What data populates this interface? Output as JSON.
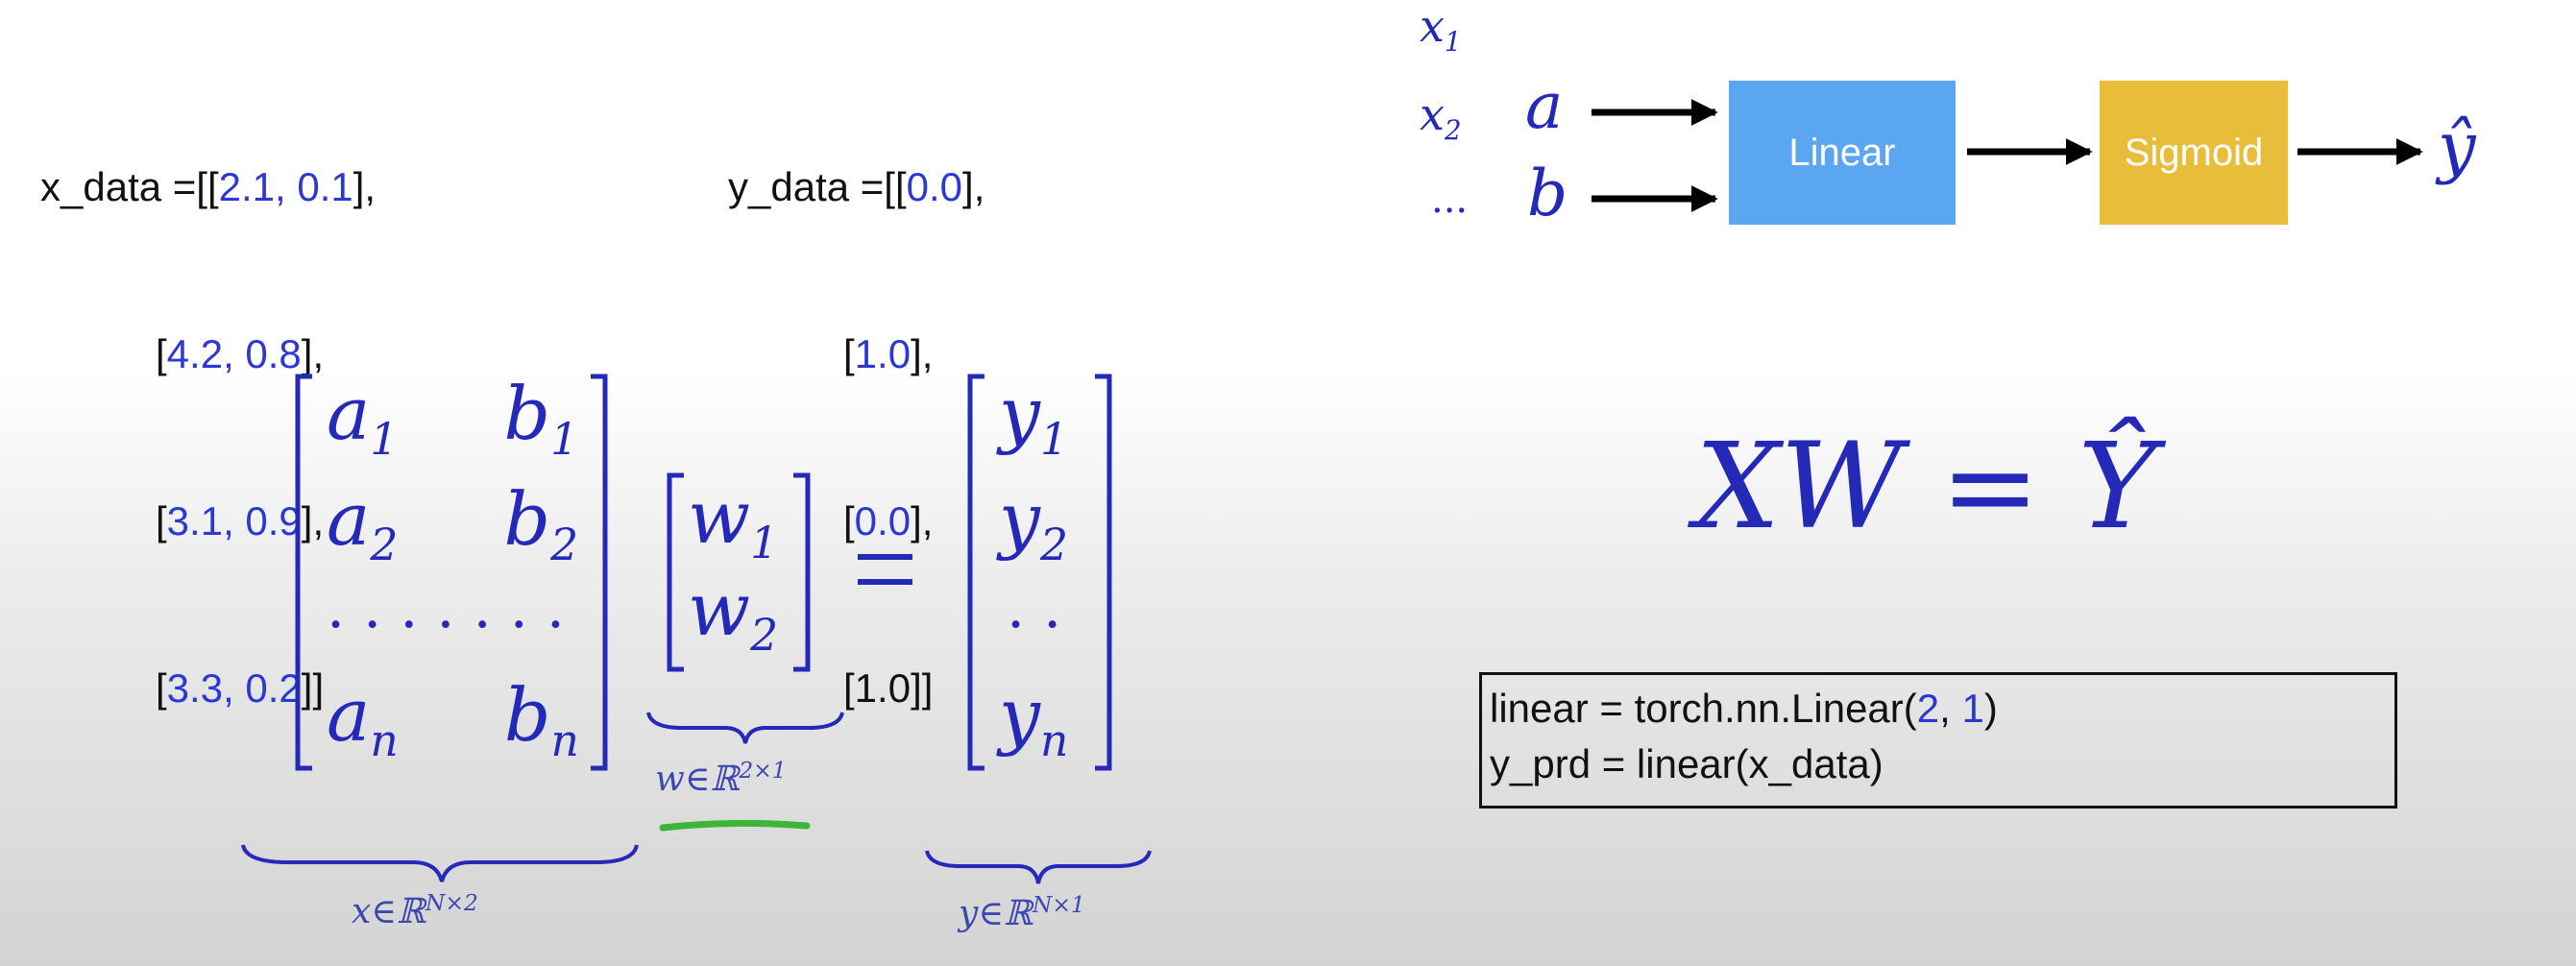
{
  "x_data": {
    "prefix": "x_data =[[",
    "rows": [
      {
        "a": "2.1",
        "b": "0.1",
        "end": "],"
      },
      {
        "a": "4.2",
        "b": "0.8",
        "end": "],"
      },
      {
        "a": "3.1",
        "b": "0.9",
        "end": "],"
      },
      {
        "a": "3.3",
        "b": "0.2",
        "end": "]]"
      }
    ],
    "sep": ", ",
    "open": "["
  },
  "y_data": {
    "prefix": "y_data =[[",
    "rows": [
      {
        "v": "0.0",
        "end": "],"
      },
      {
        "v": "1.0",
        "end": "],"
      },
      {
        "v": "0.0",
        "end": "],"
      },
      {
        "v": "1.0",
        "end": "]]"
      }
    ],
    "open": "["
  },
  "diagram": {
    "inputs": [
      "x",
      "x",
      "..."
    ],
    "input_subs": [
      "1",
      "2"
    ],
    "features": [
      "a",
      "b"
    ],
    "linear_label": "Linear",
    "sigmoid_label": "Sigmoid",
    "output_label": "ŷ"
  },
  "equation": {
    "lhs": "XW",
    "eq": "=",
    "rhs": "Ŷ"
  },
  "matrix_x": {
    "rows": [
      [
        "a",
        "1",
        "b",
        "1"
      ],
      [
        "a",
        "2",
        "b",
        "2"
      ],
      [
        "a",
        "n",
        "b",
        "n"
      ]
    ],
    "dots": ". . . . . . ."
  },
  "matrix_w": {
    "rows": [
      [
        "w",
        "1"
      ],
      [
        "w",
        "2"
      ]
    ]
  },
  "matrix_y": {
    "rows": [
      [
        "y",
        "1"
      ],
      [
        "y",
        "2"
      ],
      [
        "y",
        "n"
      ]
    ],
    "dots": ". ."
  },
  "labels": {
    "x_space": "x∈ℝ",
    "x_sup": "N×2",
    "w_space": "w∈ℝ",
    "w_sup": "2×1",
    "y_space": "y∈ℝ",
    "y_sup": "N×1"
  },
  "code": {
    "line1_pre": "linear = torch.nn.Linear(",
    "line1_a": "2",
    "line1_sep": ", ",
    "line1_b": "1",
    "line1_post": ")",
    "line2": "y_prd = linear(x_data)"
  },
  "colors": {
    "blue": "#2b38d4",
    "math_blue": "#2429b8",
    "linear_box": "#5aa6f0",
    "sigmoid_box": "#e8bd3a",
    "green_mark": "#3fb43a"
  }
}
